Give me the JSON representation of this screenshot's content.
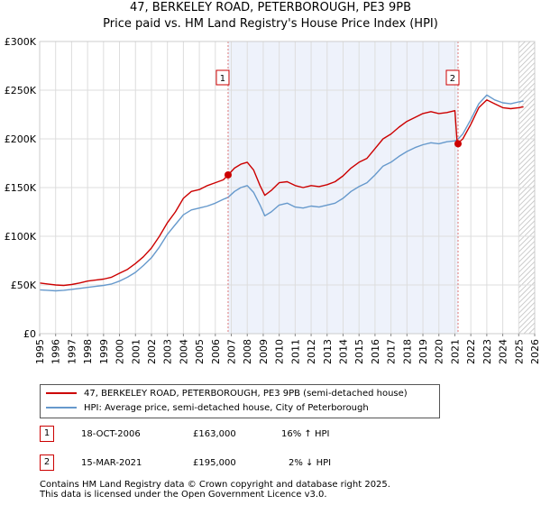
{
  "chart_data": {
    "type": "line",
    "title": "47, BERKELEY ROAD, PETERBOROUGH, PE3 9PB",
    "subtitle": "Price paid vs. HM Land Registry's House Price Index (HPI)",
    "xlabel": "",
    "ylabel": "",
    "xlim": [
      1995,
      2026
    ],
    "ylim": [
      0,
      300000
    ],
    "x_ticks": [
      "1995",
      "1996",
      "1997",
      "1998",
      "1999",
      "2000",
      "2001",
      "2002",
      "2003",
      "2004",
      "2005",
      "2006",
      "2007",
      "2008",
      "2009",
      "2010",
      "2011",
      "2012",
      "2013",
      "2014",
      "2015",
      "2016",
      "2017",
      "2018",
      "2019",
      "2020",
      "2021",
      "2022",
      "2023",
      "2024",
      "2025",
      "2026"
    ],
    "y_ticks": [
      {
        "value": 0,
        "label": "£0"
      },
      {
        "value": 50000,
        "label": "£50K"
      },
      {
        "value": 100000,
        "label": "£100K"
      },
      {
        "value": 150000,
        "label": "£150K"
      },
      {
        "value": 200000,
        "label": "£200K"
      },
      {
        "value": 250000,
        "label": "£250K"
      },
      {
        "value": 300000,
        "label": "£300K"
      }
    ],
    "grid": true,
    "shaded_range": [
      2006.8,
      2021.2
    ],
    "hatched_after": 2025.0,
    "series": [
      {
        "name": "47, BERKELEY ROAD, PETERBOROUGH, PE3 9PB (semi-detached house)",
        "color": "#cc0000",
        "points": [
          [
            1995.0,
            52000
          ],
          [
            1995.5,
            51000
          ],
          [
            1996.0,
            50000
          ],
          [
            1996.5,
            49500
          ],
          [
            1997.0,
            50500
          ],
          [
            1997.5,
            52000
          ],
          [
            1998.0,
            54000
          ],
          [
            1998.5,
            55000
          ],
          [
            1999.0,
            56000
          ],
          [
            1999.5,
            58000
          ],
          [
            2000.0,
            62000
          ],
          [
            2000.5,
            66000
          ],
          [
            2001.0,
            72000
          ],
          [
            2001.5,
            79000
          ],
          [
            2002.0,
            88000
          ],
          [
            2002.5,
            100000
          ],
          [
            2003.0,
            114000
          ],
          [
            2003.5,
            125000
          ],
          [
            2004.0,
            139000
          ],
          [
            2004.5,
            146000
          ],
          [
            2005.0,
            148000
          ],
          [
            2005.5,
            152000
          ],
          [
            2006.0,
            155000
          ],
          [
            2006.5,
            158000
          ],
          [
            2006.8,
            163000
          ],
          [
            2007.2,
            170000
          ],
          [
            2007.6,
            174000
          ],
          [
            2008.0,
            176000
          ],
          [
            2008.4,
            168000
          ],
          [
            2008.8,
            152000
          ],
          [
            2009.1,
            142000
          ],
          [
            2009.5,
            147000
          ],
          [
            2010.0,
            155000
          ],
          [
            2010.5,
            156000
          ],
          [
            2011.0,
            152000
          ],
          [
            2011.5,
            150000
          ],
          [
            2012.0,
            152000
          ],
          [
            2012.5,
            151000
          ],
          [
            2013.0,
            153000
          ],
          [
            2013.5,
            156000
          ],
          [
            2014.0,
            162000
          ],
          [
            2014.5,
            170000
          ],
          [
            2015.0,
            176000
          ],
          [
            2015.5,
            180000
          ],
          [
            2016.0,
            190000
          ],
          [
            2016.5,
            200000
          ],
          [
            2017.0,
            205000
          ],
          [
            2017.5,
            212000
          ],
          [
            2018.0,
            218000
          ],
          [
            2018.5,
            222000
          ],
          [
            2019.0,
            226000
          ],
          [
            2019.5,
            228000
          ],
          [
            2020.0,
            226000
          ],
          [
            2020.5,
            227000
          ],
          [
            2021.0,
            229000
          ],
          [
            2021.15,
            195000
          ],
          [
            2021.5,
            200000
          ],
          [
            2022.0,
            215000
          ],
          [
            2022.5,
            232000
          ],
          [
            2023.0,
            240000
          ],
          [
            2023.5,
            236000
          ],
          [
            2024.0,
            232000
          ],
          [
            2024.5,
            231000
          ],
          [
            2025.0,
            232000
          ],
          [
            2025.3,
            233000
          ]
        ]
      },
      {
        "name": "HPI: Average price, semi-detached house, City of Peterborough",
        "color": "#6699cc",
        "points": [
          [
            1995.0,
            45000
          ],
          [
            1995.5,
            44500
          ],
          [
            1996.0,
            44000
          ],
          [
            1996.5,
            44500
          ],
          [
            1997.0,
            45500
          ],
          [
            1997.5,
            46500
          ],
          [
            1998.0,
            47500
          ],
          [
            1998.5,
            48500
          ],
          [
            1999.0,
            49500
          ],
          [
            1999.5,
            51000
          ],
          [
            2000.0,
            54000
          ],
          [
            2000.5,
            58000
          ],
          [
            2001.0,
            63000
          ],
          [
            2001.5,
            70000
          ],
          [
            2002.0,
            78000
          ],
          [
            2002.5,
            89000
          ],
          [
            2003.0,
            102000
          ],
          [
            2003.5,
            112000
          ],
          [
            2004.0,
            122000
          ],
          [
            2004.5,
            127000
          ],
          [
            2005.0,
            129000
          ],
          [
            2005.5,
            131000
          ],
          [
            2006.0,
            134000
          ],
          [
            2006.5,
            138000
          ],
          [
            2006.8,
            140000
          ],
          [
            2007.2,
            146000
          ],
          [
            2007.6,
            150000
          ],
          [
            2008.0,
            152000
          ],
          [
            2008.4,
            145000
          ],
          [
            2008.8,
            132000
          ],
          [
            2009.1,
            121000
          ],
          [
            2009.5,
            125000
          ],
          [
            2010.0,
            132000
          ],
          [
            2010.5,
            134000
          ],
          [
            2011.0,
            130000
          ],
          [
            2011.5,
            129000
          ],
          [
            2012.0,
            131000
          ],
          [
            2012.5,
            130000
          ],
          [
            2013.0,
            132000
          ],
          [
            2013.5,
            134000
          ],
          [
            2014.0,
            139000
          ],
          [
            2014.5,
            146000
          ],
          [
            2015.0,
            151000
          ],
          [
            2015.5,
            155000
          ],
          [
            2016.0,
            163000
          ],
          [
            2016.5,
            172000
          ],
          [
            2017.0,
            176000
          ],
          [
            2017.5,
            182000
          ],
          [
            2018.0,
            187000
          ],
          [
            2018.5,
            191000
          ],
          [
            2019.0,
            194000
          ],
          [
            2019.5,
            196000
          ],
          [
            2020.0,
            195000
          ],
          [
            2020.5,
            197000
          ],
          [
            2021.0,
            198000
          ],
          [
            2021.15,
            199000
          ],
          [
            2021.5,
            205000
          ],
          [
            2022.0,
            220000
          ],
          [
            2022.5,
            236000
          ],
          [
            2023.0,
            245000
          ],
          [
            2023.5,
            240000
          ],
          [
            2024.0,
            237000
          ],
          [
            2024.5,
            236000
          ],
          [
            2025.0,
            238000
          ],
          [
            2025.3,
            239000
          ]
        ]
      }
    ],
    "markers": [
      {
        "label": "1",
        "x": 2006.8,
        "y": 163000
      },
      {
        "label": "2",
        "x": 2021.2,
        "y": 195000
      }
    ]
  },
  "legend": [
    {
      "label": "47, BERKELEY ROAD, PETERBOROUGH, PE3 9PB (semi-detached house)",
      "color": "#cc0000"
    },
    {
      "label": "HPI: Average price, semi-detached house, City of Peterborough",
      "color": "#6699cc"
    }
  ],
  "transactions": [
    {
      "num": "1",
      "date": "18-OCT-2006",
      "price": "£163,000",
      "hpi": "16% ↑ HPI"
    },
    {
      "num": "2",
      "date": "15-MAR-2021",
      "price": "£195,000",
      "hpi": "2% ↓ HPI"
    }
  ],
  "footer": {
    "line1": "Contains HM Land Registry data © Crown copyright and database right 2025.",
    "line2": "This data is licensed under the Open Government Licence v3.0."
  }
}
